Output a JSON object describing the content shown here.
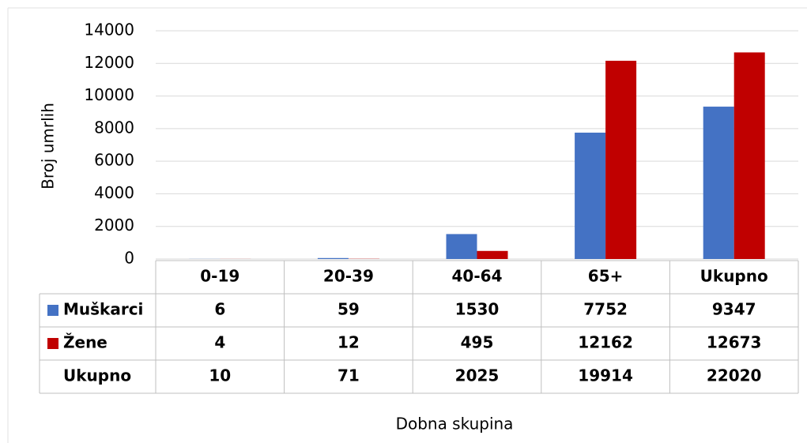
{
  "chart_data": {
    "type": "bar",
    "y_label": "Broj umrlih",
    "x_label": "Dobna skupina",
    "categories": [
      "0-19",
      "20-39",
      "40-64",
      "65+",
      "Ukupno"
    ],
    "series": [
      {
        "name": "Muškarci",
        "color": "#4472c4",
        "values": [
          6,
          59,
          1530,
          7752,
          9347
        ]
      },
      {
        "name": "Žene",
        "color": "#c00000",
        "values": [
          4,
          12,
          495,
          12162,
          12673
        ]
      }
    ],
    "data_table": {
      "total": {
        "name": "Ukupno",
        "values": [
          10,
          71,
          2025,
          19914,
          22020
        ]
      }
    },
    "ylim": [
      0,
      14000
    ],
    "yticks": [
      0,
      2000,
      4000,
      6000,
      8000,
      10000,
      12000,
      14000
    ],
    "grid": true
  }
}
